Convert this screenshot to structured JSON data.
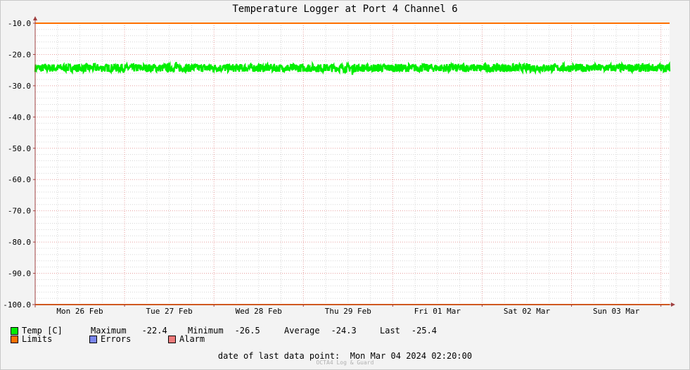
{
  "chart_data": {
    "type": "line",
    "title": "Temperature Logger at Port 4 Channel 6",
    "y_ticks": [
      "-10.0",
      "-20.0",
      "-30.0",
      "-40.0",
      "-50.0",
      "-60.0",
      "-70.0",
      "-80.0",
      "-90.0",
      "-100.0"
    ],
    "ylim": [
      -100,
      -10
    ],
    "x_ticks": [
      "Mon 26 Feb",
      "Tue 27 Feb",
      "Wed 28 Feb",
      "Thu 29 Feb",
      "Fri 01 Mar",
      "Sat 02 Mar",
      "Sun 03 Mar"
    ],
    "xlim_days": [
      "Mon 26 Feb",
      "Mon 04 Mar 02:20"
    ],
    "grid": true,
    "series": [
      {
        "name": "Temp [C]",
        "color": "#00ee00",
        "min": -26.5,
        "max": -22.4,
        "average": -24.3,
        "last": -25.4
      }
    ],
    "limits": {
      "name": "Limits",
      "color": "#ff7000",
      "upper": -10,
      "lower": -100
    }
  },
  "legend": {
    "temp_label": "Temp [C]",
    "maximum_label": "Maximum",
    "maximum_value": "-22.4",
    "minimum_label": "Minimum",
    "minimum_value": "-26.5",
    "average_label": "Average",
    "average_value": "-24.3",
    "last_label": "Last",
    "last_value": "-25.4",
    "limits_label": "Limits",
    "errors_label": "Errors",
    "alarm_label": "Alarm",
    "colors": {
      "temp": "#00ee00",
      "limits": "#ff7000",
      "errors": "#7a86ee",
      "alarm": "#ee7a7a"
    }
  },
  "footer": {
    "last_point_label": "date of last data point:",
    "last_point_value": "Mon Mar 04 2024 02:20:00",
    "brand": "OCTA4 Log & Guard"
  }
}
